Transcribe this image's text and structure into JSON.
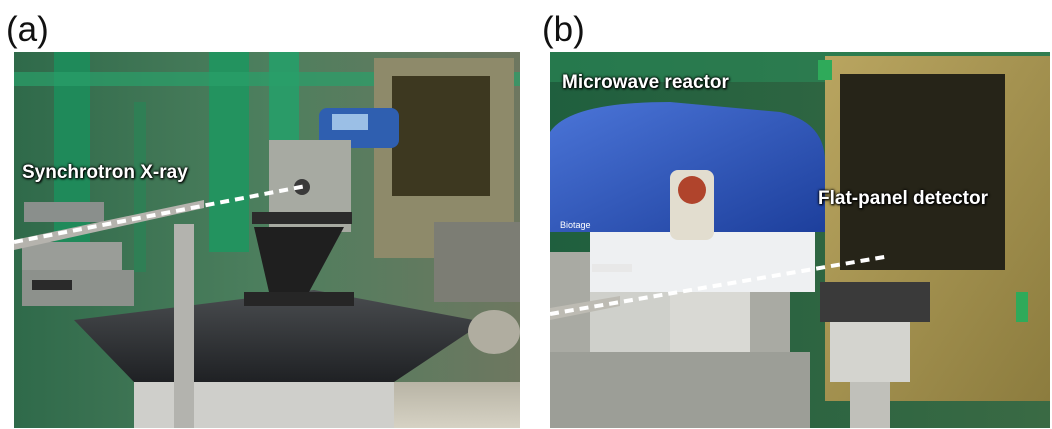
{
  "panels": [
    {
      "letter": "(a)",
      "label": "Synchrotron X-ray"
    },
    {
      "letter": "(b)",
      "label_top": "Microwave reactor",
      "label_right": "Flat-panel detector"
    }
  ],
  "device_brand": "Biotage"
}
